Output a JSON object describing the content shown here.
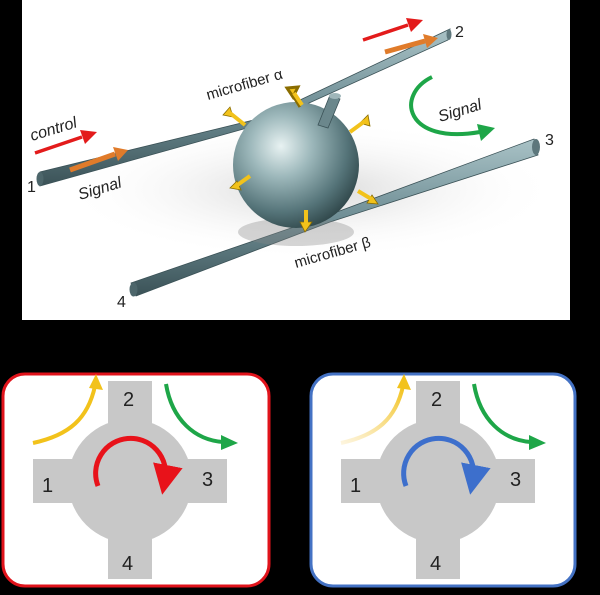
{
  "top_panel": {
    "port_1": "1",
    "port_2": "2",
    "port_3": "3",
    "port_4": "4",
    "control_label": "control",
    "signal_in_label": "Signal",
    "signal_out_label": "Signal",
    "microfiber_alpha_label": "microfiber α",
    "microfiber_beta_label": "microfiber β"
  },
  "left_panel": {
    "port_1": "1",
    "port_2": "2",
    "port_3": "3",
    "port_4": "4",
    "frame_color": "#e0131b",
    "rotation_color": "#e8121a"
  },
  "right_panel": {
    "port_1": "1",
    "port_2": "2",
    "port_3": "3",
    "port_4": "4",
    "frame_color": "#4472c4",
    "rotation_color": "#3d6fcc"
  },
  "colors": {
    "control_arrow": "#e31b1b",
    "signal_arrow_in": "#e07b2a",
    "signal_arrow_out": "#1ea648",
    "coupling_arrow": "#f2c21b",
    "fiber": "#6f8e95",
    "sphere": "#7f9ea3",
    "cross": "#c8c8c8"
  }
}
